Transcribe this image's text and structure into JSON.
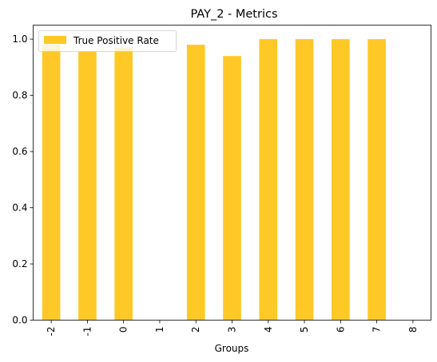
{
  "chart_data": {
    "type": "bar",
    "title": "PAY_2 - Metrics",
    "xlabel": "Groups",
    "ylabel": "",
    "categories": [
      "-2",
      "-1",
      "0",
      "1",
      "2",
      "3",
      "4",
      "5",
      "6",
      "7",
      "8"
    ],
    "series": [
      {
        "name": "True Positive Rate",
        "color": "#fec826",
        "values": [
          0.98,
          0.955,
          0.97,
          0,
          0.98,
          0.94,
          1.0,
          1.0,
          1.0,
          1.0,
          0
        ]
      }
    ],
    "ylim": [
      0,
      1.05
    ],
    "yticks": [
      "0.0",
      "0.2",
      "0.4",
      "0.6",
      "0.8",
      "1.0"
    ],
    "grid": false,
    "legend_position": "top-left"
  }
}
